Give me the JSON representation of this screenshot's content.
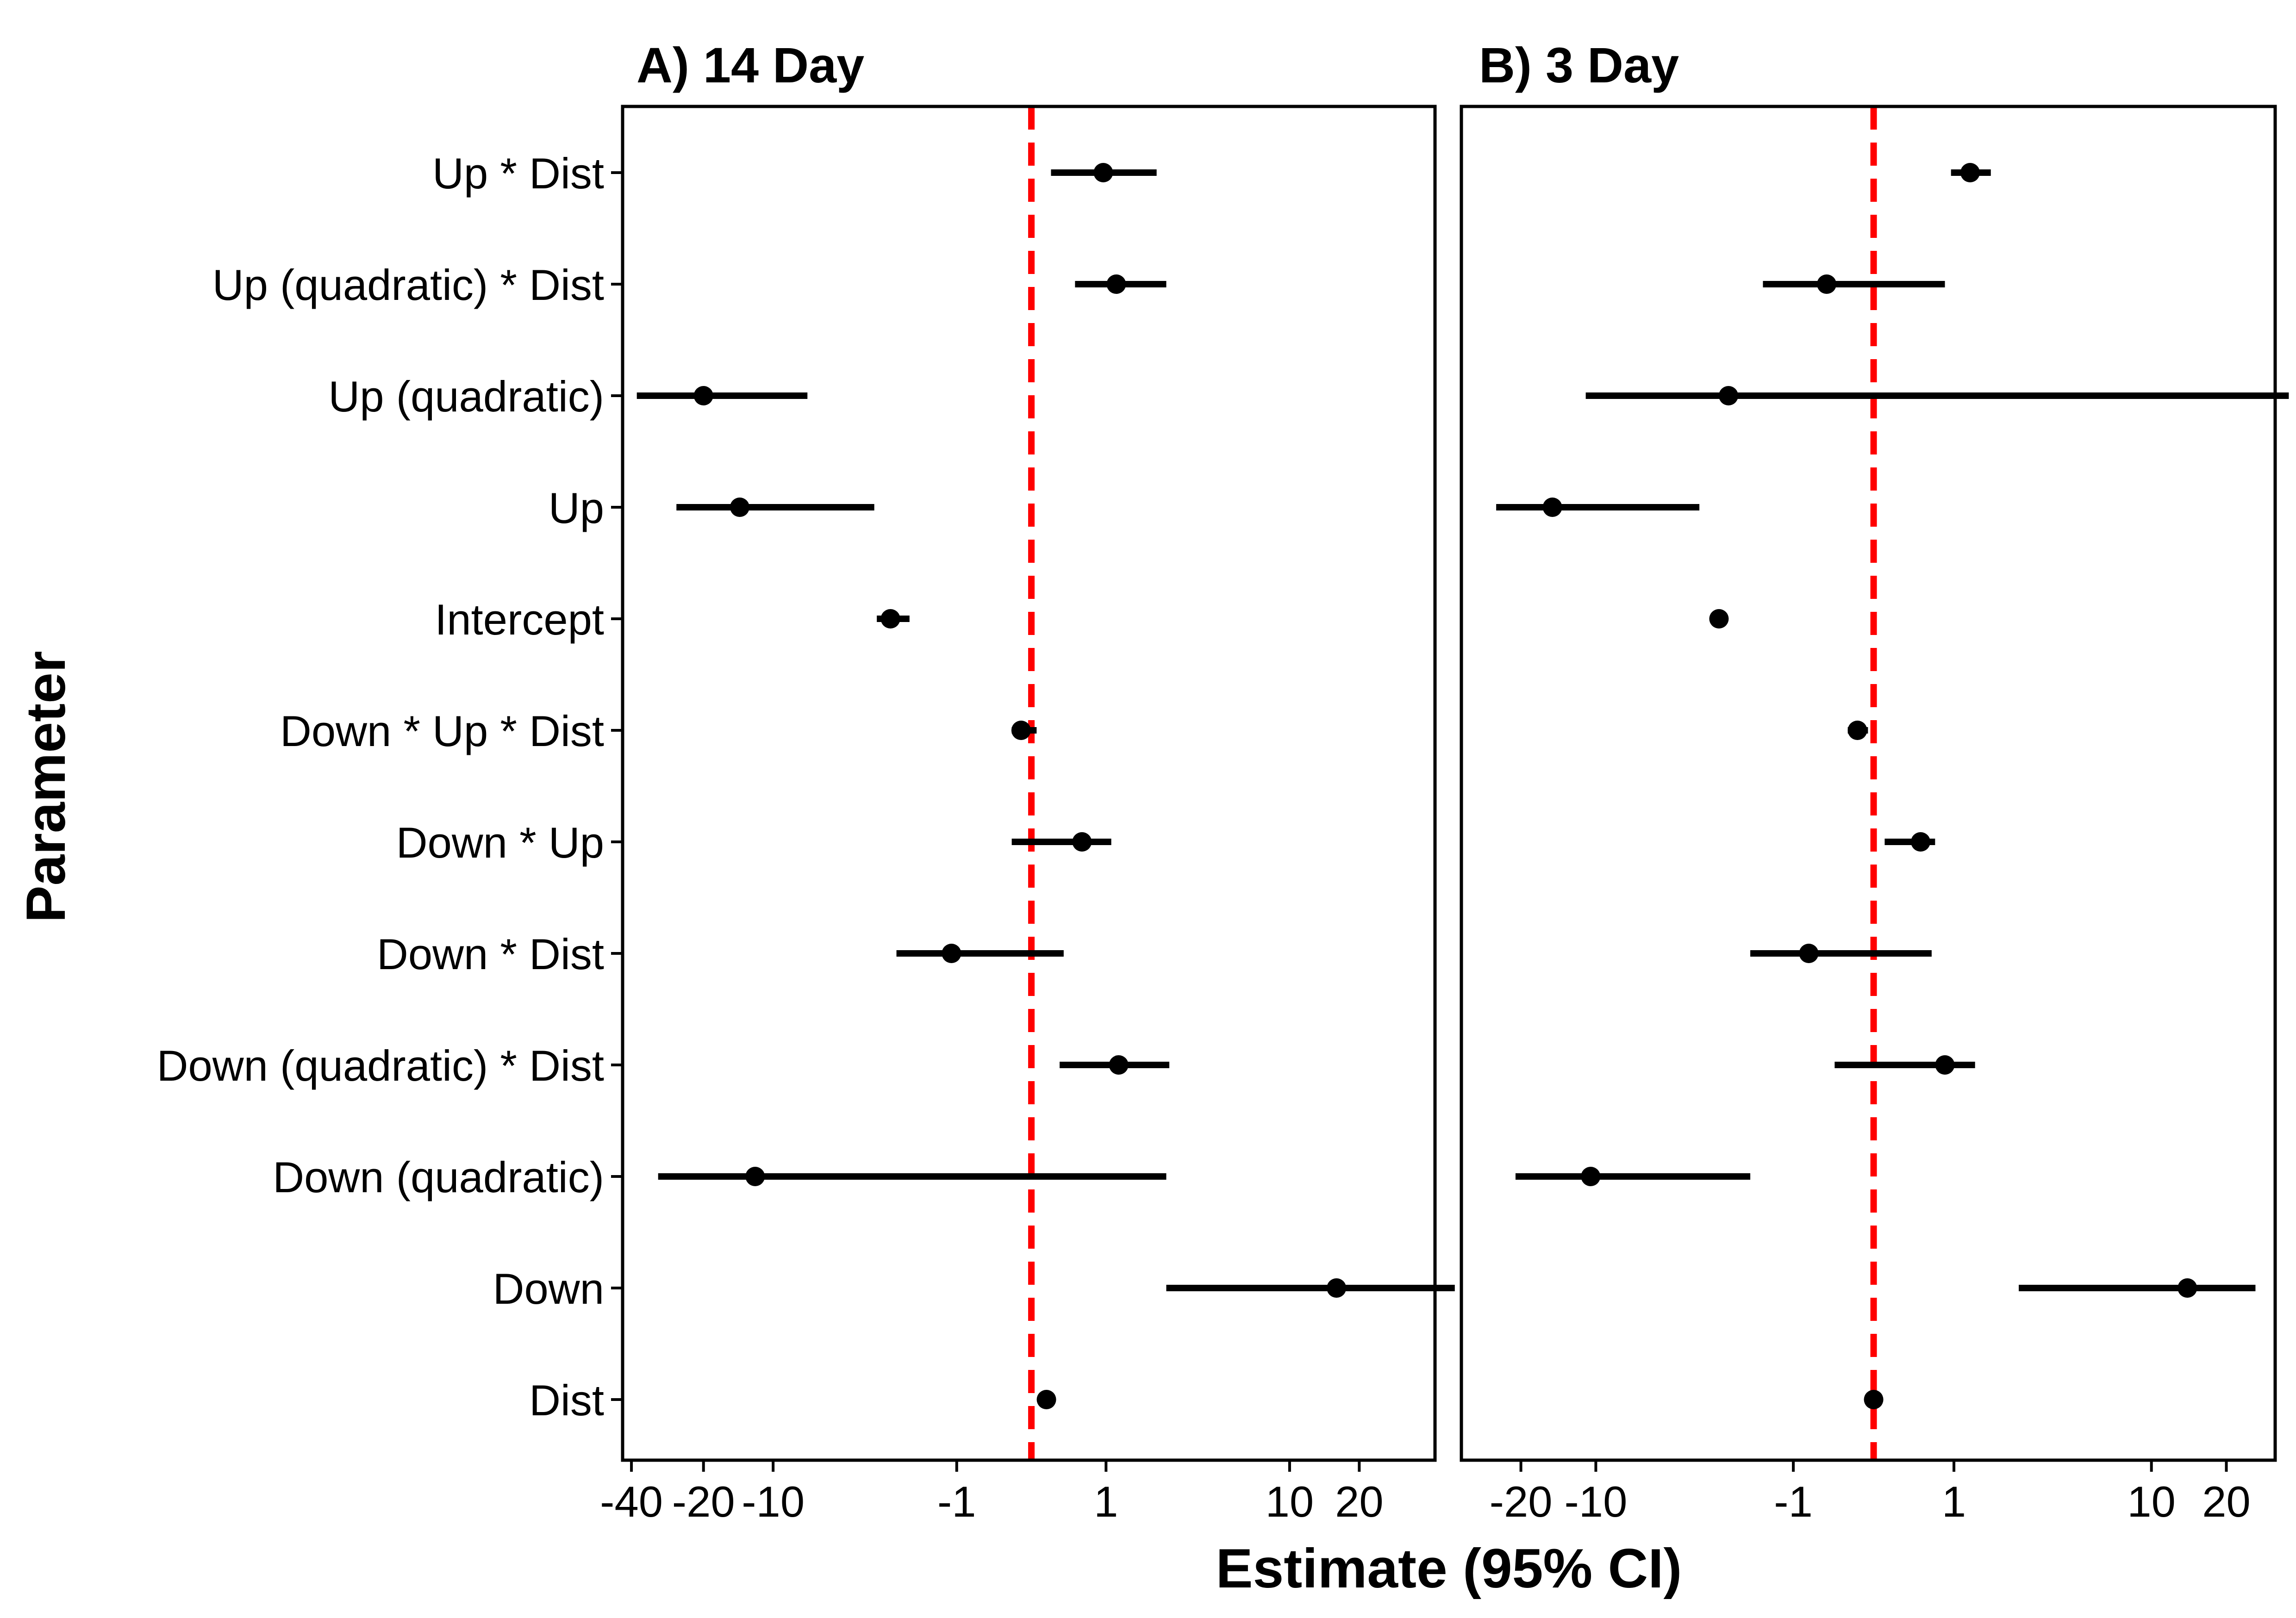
{
  "figure": {
    "xlabel": "Estimate (95% CI)",
    "ylabel": "Parameter",
    "reference_line_color": "#ff0000",
    "point_color": "#000000"
  },
  "chart_data": [
    {
      "type": "forest",
      "title": "A) 14 Day",
      "x_scale": "pseudo-log (signed)",
      "x_tick_labels": [
        "-40",
        "-20",
        "-10",
        "-1",
        "1",
        "10",
        "20"
      ],
      "x_ticks": [
        -40,
        -20,
        -10,
        -1,
        1,
        10,
        20
      ],
      "xlim": [
        -42,
        40
      ],
      "reference_line": 0,
      "categories": [
        "Up * Dist",
        "Up (quadratic) * Dist",
        "Up (quadratic)",
        "Up",
        "Intercept",
        "Down * Up * Dist",
        "Down * Up",
        "Down * Dist",
        "Down (quadratic) * Dist",
        "Down (quadratic)",
        "Down",
        "Dist"
      ],
      "estimates": [
        0.95,
        1.2,
        -20,
        -14,
        -2.7,
        -0.1,
        0.6,
        -1.1,
        1.25,
        -12,
        16,
        0.15
      ],
      "ci_lower": [
        0.2,
        0.5,
        -38,
        -26,
        -3.2,
        -0.2,
        -0.2,
        -2.5,
        0.3,
        -31,
        2.5,
        0.1
      ],
      "ci_upper": [
        2.2,
        2.5,
        -7,
        -3.3,
        -2.1,
        0.05,
        1.1,
        0.35,
        2.6,
        2.5,
        50,
        0.2
      ]
    },
    {
      "type": "forest",
      "title": "B) 3 Day",
      "x_scale": "pseudo-log (signed)",
      "x_tick_labels": [
        "-20",
        "-10",
        "-1",
        "1",
        "10",
        "20"
      ],
      "x_ticks": [
        -20,
        -10,
        -1,
        1,
        10,
        20
      ],
      "xlim": [
        -33,
        30
      ],
      "reference_line": 0,
      "categories": [
        "Up * Dist",
        "Up (quadratic) * Dist",
        "Up (quadratic)",
        "Up",
        "Intercept",
        "Down * Up * Dist",
        "Down * Up",
        "Down * Dist",
        "Down (quadratic) * Dist",
        "Down (quadratic)",
        "Down",
        "Dist"
      ],
      "estimates": [
        1.3,
        -0.5,
        -2.5,
        -15,
        -2.8,
        -0.15,
        0.5,
        -0.75,
        0.85,
        -10.5,
        14,
        0
      ],
      "ci_lower": [
        0.95,
        -1.6,
        -11,
        -25,
        -2.9,
        -0.25,
        0.1,
        -1.9,
        -0.4,
        -21,
        2.5,
        0
      ],
      "ci_upper": [
        1.75,
        0.85,
        35,
        -3.5,
        -2.7,
        -0.05,
        0.7,
        0.65,
        1.4,
        -1.9,
        26,
        0
      ]
    }
  ]
}
